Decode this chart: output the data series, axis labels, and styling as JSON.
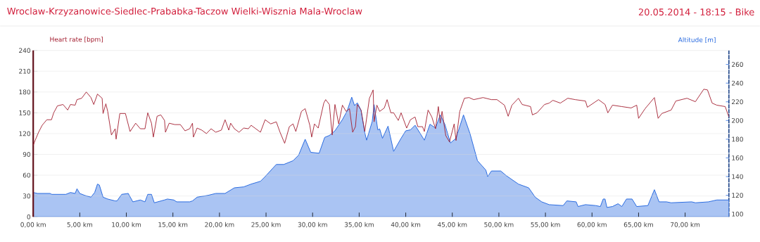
{
  "chart_data": {
    "type": "line",
    "title": "Wroclaw-Krzyzanowice-Siedlec-Prababka-Taczow Wielki-Wisznia Mala-Wroclaw",
    "subtitle": "20.05.2014 - 18:15 - Bike",
    "ylabel": "Heart rate [bpm]",
    "y2label": "Altitude [m]",
    "xlim": [
      0,
      74.7
    ],
    "xticks": [
      {
        "value": 0,
        "label": "0,00 km"
      },
      {
        "value": 5,
        "label": "5,00 km"
      },
      {
        "value": 10,
        "label": "10,00 km"
      },
      {
        "value": 15,
        "label": "15,00 km"
      },
      {
        "value": 20,
        "label": "20,00 km"
      },
      {
        "value": 25,
        "label": "25,00 km"
      },
      {
        "value": 30,
        "label": "30,00 km"
      },
      {
        "value": 35,
        "label": "35,00 km"
      },
      {
        "value": 40,
        "label": "40,00 km"
      },
      {
        "value": 45,
        "label": "45,00 km"
      },
      {
        "value": 50,
        "label": "50,00 km"
      },
      {
        "value": 55,
        "label": "55,00 km"
      },
      {
        "value": 60,
        "label": "60,00 km"
      },
      {
        "value": 65,
        "label": "65,00 km"
      },
      {
        "value": 70,
        "label": "70,00 km"
      }
    ],
    "ylim": [
      0,
      240
    ],
    "yticks": [
      0,
      30,
      60,
      90,
      120,
      150,
      180,
      210,
      240
    ],
    "y2lim": [
      97,
      275
    ],
    "y2ticks": [
      100,
      120,
      140,
      160,
      180,
      200,
      220,
      240,
      260
    ],
    "grid": "y",
    "series": [
      {
        "type": "area",
        "axis": "y2",
        "color": "#2a6be0",
        "x": [
          0,
          0.45,
          1.8,
          2.0,
          3.5,
          4.0,
          4.5,
          4.7,
          5.0,
          5.5,
          6.2,
          6.6,
          6.9,
          7.1,
          7.5,
          8.0,
          8.8,
          9.0,
          9.5,
          10.2,
          10.7,
          11.5,
          12.0,
          12.3,
          12.7,
          13.0,
          14.1,
          14.4,
          15.1,
          15.4,
          16.8,
          17.1,
          17.6,
          18.8,
          19.6,
          20.6,
          21.6,
          22.6,
          23.4,
          24.4,
          24.9,
          26.1,
          26.9,
          27.9,
          28.5,
          29.2,
          29.8,
          30.7,
          31.3,
          31.8,
          32.4,
          33.2,
          33.7,
          34.2,
          34.5,
          34.8,
          35.2,
          35.6,
          35.8,
          36.4,
          36.6,
          37.0,
          37.2,
          37.5,
          38.1,
          38.7,
          39.5,
          40.0,
          40.5,
          41.0,
          41.5,
          42.0,
          42.6,
          43.2,
          43.7,
          44.2,
          44.8,
          45.4,
          46.2,
          46.9,
          47.7,
          48.6,
          48.8,
          49.2,
          50.2,
          50.8,
          52.1,
          53.2,
          53.9,
          54.6,
          55.4,
          56.9,
          57.3,
          58.3,
          58.5,
          59.3,
          60.4,
          60.9,
          61.2,
          61.4,
          61.6,
          62.2,
          62.8,
          63.2,
          63.7,
          64.3,
          64.8,
          66.0,
          66.7,
          67.2,
          68.0,
          68.5,
          70.7,
          71.1,
          72.5,
          73.4,
          74.7
        ],
        "values": [
          123,
          122,
          122,
          121,
          121,
          123,
          122,
          127,
          122,
          120,
          118,
          123,
          132,
          131,
          118,
          116,
          114,
          114,
          121,
          122,
          113,
          115,
          113,
          121,
          121,
          112,
          115,
          116,
          115,
          113,
          113,
          114,
          118,
          120,
          122,
          122,
          128,
          129,
          132,
          135,
          140,
          153,
          153,
          157,
          163,
          180,
          166,
          165,
          182,
          184,
          189,
          201,
          210,
          225,
          216,
          219,
          211,
          187,
          179,
          199,
          217,
          190,
          191,
          181,
          194,
          167,
          181,
          189,
          190,
          195,
          187,
          179,
          196,
          192,
          206,
          196,
          176,
          181,
          206,
          186,
          157,
          147,
          140,
          146,
          146,
          141,
          132,
          128,
          118,
          113,
          110,
          109,
          114,
          113,
          108,
          110,
          109,
          108,
          116,
          116,
          107,
          108,
          111,
          108,
          116,
          116,
          108,
          109,
          126,
          113,
          113,
          112,
          113,
          112,
          113,
          115,
          115
        ]
      },
      {
        "color": "#a31d2f",
        "x": [
          0,
          0.2,
          0.58,
          0.96,
          1.46,
          1.96,
          2.2,
          2.6,
          3.2,
          3.7,
          4.0,
          4.5,
          4.7,
          5.2,
          5.7,
          6.2,
          6.5,
          6.9,
          7.4,
          7.5,
          7.8,
          8.0,
          8.4,
          8.8,
          8.9,
          9.3,
          9.9,
          10.4,
          11.0,
          11.5,
          12.0,
          12.3,
          12.7,
          12.9,
          13.3,
          13.7,
          14.1,
          14.2,
          14.6,
          15.2,
          15.8,
          16.3,
          16.8,
          17.1,
          17.2,
          17.6,
          18.1,
          18.6,
          19.1,
          19.6,
          20.2,
          20.6,
          21.0,
          21.2,
          21.6,
          22.1,
          22.6,
          23.1,
          23.4,
          24.4,
          24.9,
          25.5,
          26.1,
          26.5,
          27.0,
          27.5,
          27.9,
          28.2,
          28.8,
          29.2,
          29.7,
          29.9,
          30.2,
          30.6,
          31.2,
          31.4,
          31.8,
          32.1,
          32.4,
          32.8,
          33.2,
          33.6,
          33.96,
          34.3,
          34.6,
          34.8,
          35.2,
          35.6,
          36.1,
          36.5,
          36.6,
          36.9,
          37.2,
          37.7,
          38.0,
          38.4,
          38.7,
          39.2,
          39.5,
          40.1,
          40.5,
          41.0,
          41.3,
          41.8,
          42.0,
          42.4,
          42.8,
          43.2,
          43.5,
          43.7,
          43.9,
          44.3,
          44.7,
          45.2,
          45.4,
          45.8,
          46.3,
          46.8,
          47.3,
          48.3,
          49.2,
          49.8,
          50.6,
          51.0,
          51.4,
          52.1,
          52.5,
          53.4,
          53.6,
          54.1,
          54.9,
          55.4,
          55.8,
          56.6,
          57.4,
          58.2,
          59.3,
          59.5,
          60.7,
          61.4,
          61.7,
          62.2,
          63.2,
          64.2,
          64.8,
          65.0,
          65.7,
          66.7,
          67.1,
          67.5,
          68.5,
          69.0,
          70.2,
          71.1,
          72.0,
          72.4,
          72.9,
          73.4,
          74.3,
          74.7
        ],
        "values": [
          103,
          110,
          122,
          132,
          140,
          140,
          150,
          160,
          162,
          154,
          162,
          161,
          169,
          171,
          180,
          172,
          162,
          177,
          171,
          149,
          163,
          152,
          118,
          127,
          112,
          149,
          149,
          123,
          135,
          127,
          127,
          150,
          135,
          115,
          145,
          147,
          139,
          122,
          135,
          133,
          133,
          124,
          127,
          135,
          115,
          128,
          125,
          120,
          127,
          122,
          125,
          140,
          125,
          135,
          127,
          122,
          128,
          127,
          132,
          122,
          140,
          134,
          137,
          122,
          106,
          130,
          134,
          123,
          152,
          156,
          132,
          115,
          134,
          128,
          164,
          169,
          162,
          118,
          162,
          134,
          161,
          152,
          156,
          122,
          130,
          162,
          154,
          123,
          171,
          183,
          137,
          161,
          152,
          157,
          169,
          150,
          150,
          139,
          150,
          128,
          140,
          144,
          130,
          130,
          123,
          154,
          144,
          127,
          159,
          135,
          152,
          117,
          108,
          134,
          110,
          152,
          171,
          172,
          169,
          172,
          169,
          169,
          161,
          145,
          161,
          171,
          162,
          159,
          147,
          150,
          162,
          164,
          168,
          164,
          171,
          169,
          167,
          158,
          169,
          162,
          150,
          161,
          159,
          157,
          161,
          142,
          156,
          172,
          142,
          149,
          154,
          167,
          171,
          166,
          184,
          183,
          164,
          161,
          159,
          144
        ]
      }
    ]
  }
}
